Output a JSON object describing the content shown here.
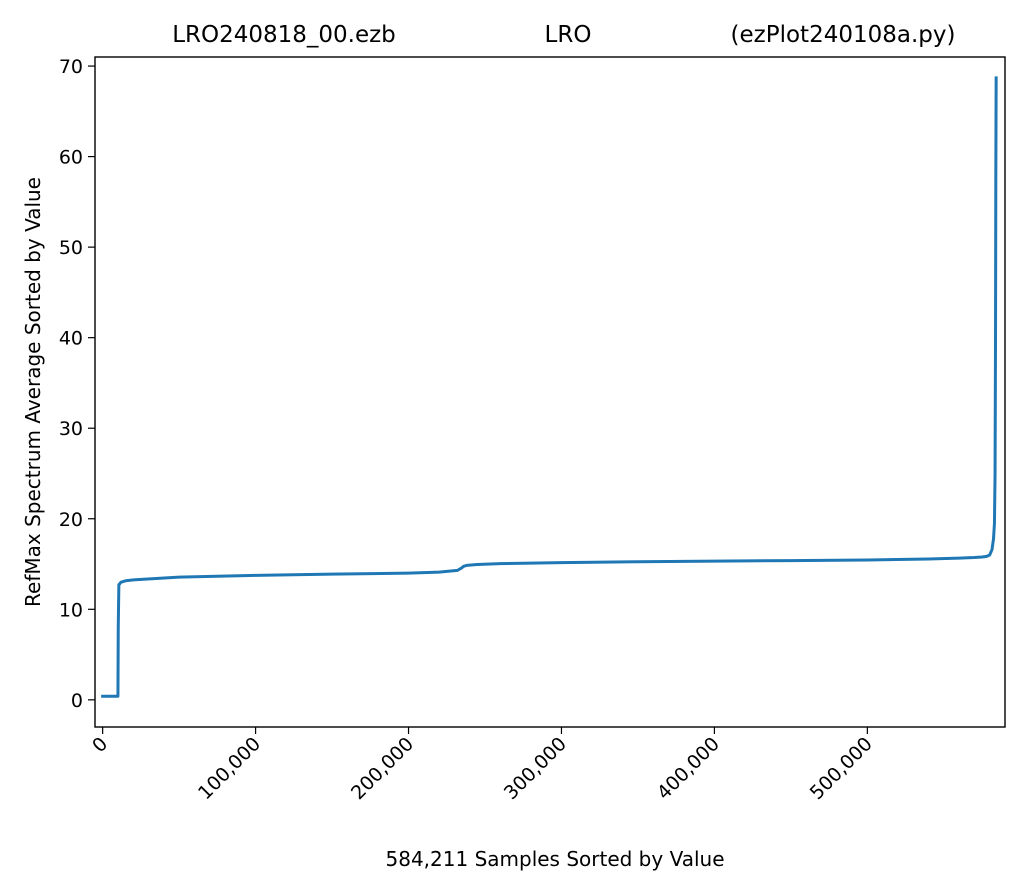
{
  "chart_data": {
    "type": "line",
    "title_parts": [
      "LRO240818_00.ezb",
      "LRO",
      "(ezPlot240108a.py)"
    ],
    "xlabel": "584,211 Samples Sorted by Value",
    "ylabel": "RefMax Spectrum Average Sorted by Value",
    "xlim": [
      -5000,
      590000
    ],
    "ylim": [
      -3,
      71
    ],
    "xticks": [
      {
        "value": 0,
        "label": "0"
      },
      {
        "value": 100000,
        "label": "100,000"
      },
      {
        "value": 200000,
        "label": "200,000"
      },
      {
        "value": 300000,
        "label": "300,000"
      },
      {
        "value": 400000,
        "label": "400,000"
      },
      {
        "value": 500000,
        "label": "500,000"
      }
    ],
    "yticks": [
      {
        "value": 0,
        "label": "0"
      },
      {
        "value": 10,
        "label": "10"
      },
      {
        "value": 20,
        "label": "20"
      },
      {
        "value": 30,
        "label": "30"
      },
      {
        "value": 40,
        "label": "40"
      },
      {
        "value": 50,
        "label": "50"
      },
      {
        "value": 60,
        "label": "60"
      },
      {
        "value": 70,
        "label": "70"
      }
    ],
    "grid": false,
    "series": [
      {
        "color": "#1f77b4",
        "x": [
          0,
          10000,
          10200,
          10600,
          12000,
          15000,
          20000,
          50000,
          100000,
          150000,
          200000,
          220000,
          232000,
          235000,
          236000,
          238000,
          245000,
          260000,
          300000,
          350000,
          400000,
          450000,
          500000,
          540000,
          560000,
          570000,
          575000,
          578000,
          580000,
          581500,
          582500,
          583100,
          583500,
          583800,
          584000,
          584211
        ],
        "y": [
          0.4,
          0.4,
          8,
          12.7,
          13.0,
          13.15,
          13.25,
          13.55,
          13.75,
          13.88,
          14.0,
          14.1,
          14.3,
          14.6,
          14.75,
          14.85,
          14.95,
          15.05,
          15.15,
          15.25,
          15.32,
          15.38,
          15.45,
          15.55,
          15.65,
          15.72,
          15.78,
          15.85,
          16.0,
          16.6,
          17.8,
          19.5,
          25,
          40,
          58,
          68.7
        ]
      }
    ]
  }
}
